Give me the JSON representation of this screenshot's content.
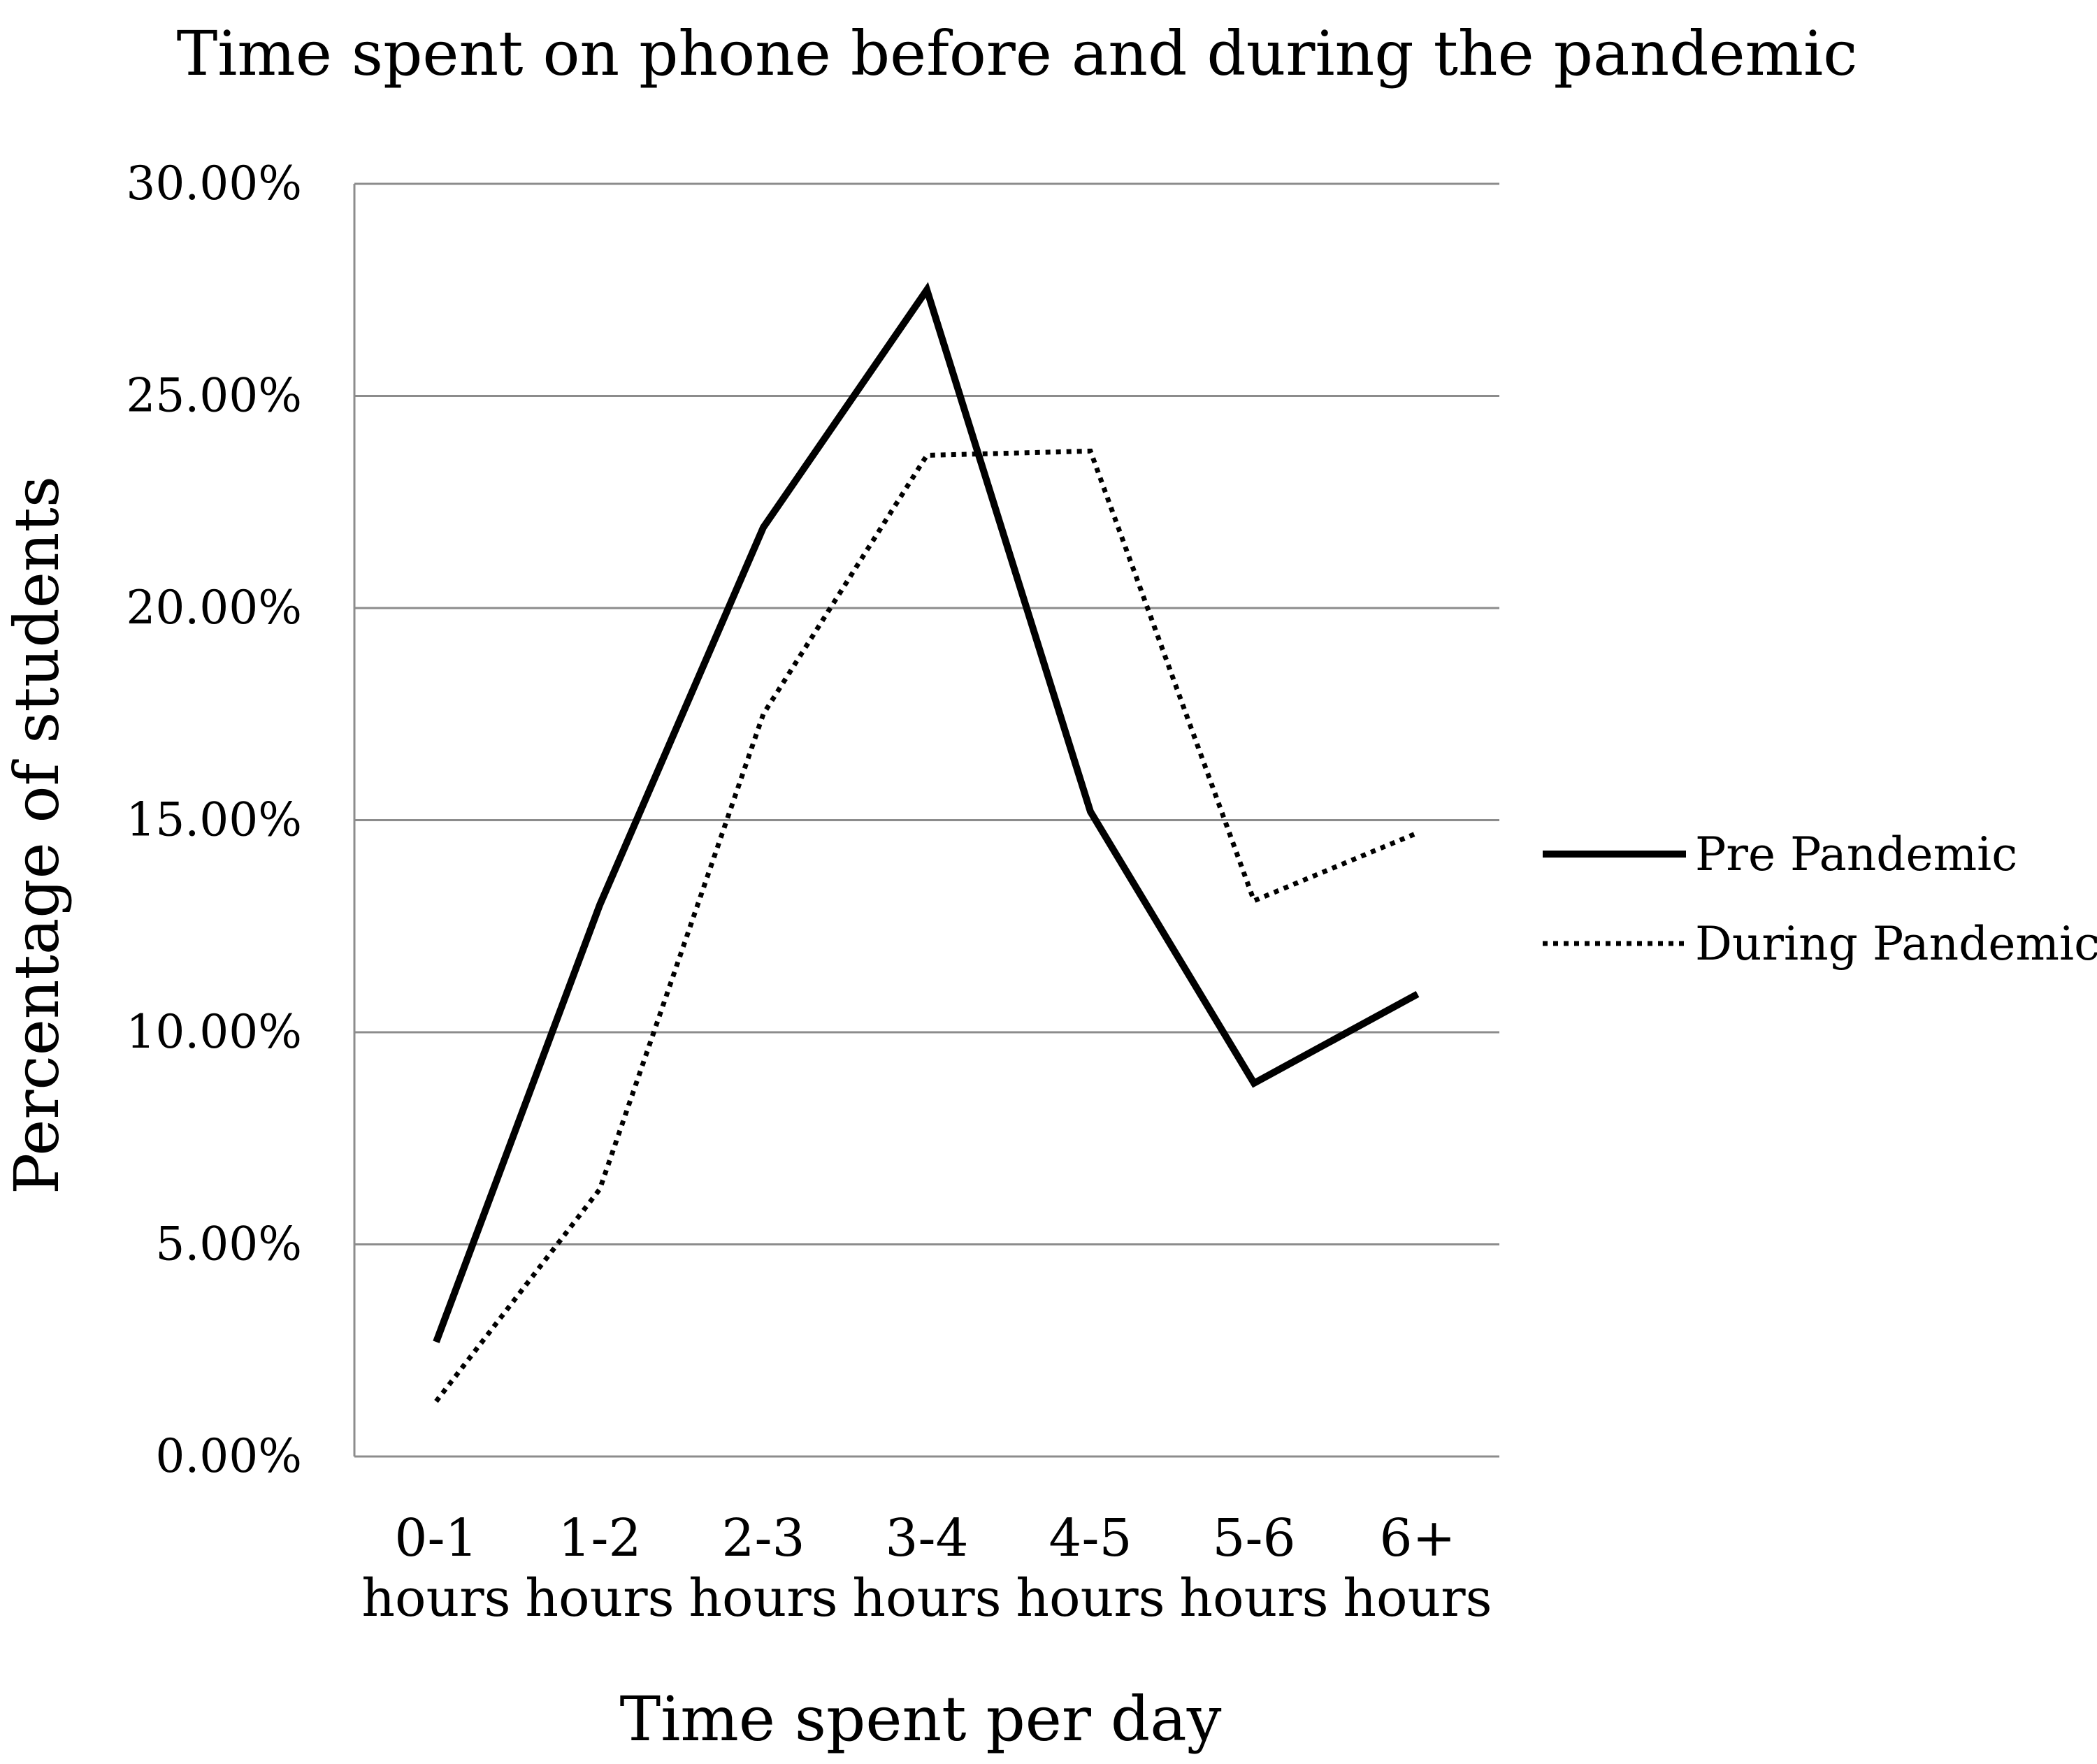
{
  "chart_data": {
    "type": "line",
    "title": "Time spent on phone before and during the pandemic",
    "xlabel": "Time spent per day",
    "ylabel": "Percentage of students",
    "categories": [
      [
        "0-1",
        "hours"
      ],
      [
        "1-2",
        "hours"
      ],
      [
        "2-3",
        "hours"
      ],
      [
        "3-4",
        "hours"
      ],
      [
        "4-5",
        "hours"
      ],
      [
        "5-6",
        "hours"
      ],
      [
        "6+",
        "hours"
      ]
    ],
    "y_ticks": [
      "0.00%",
      "5.00%",
      "10.00%",
      "15.00%",
      "20.00%",
      "25.00%",
      "30.00%"
    ],
    "ylim": [
      0,
      30
    ],
    "grid": true,
    "legend_position": "right",
    "series": [
      {
        "name": "Pre Pandemic",
        "style": "solid",
        "color": "#000000",
        "values": [
          2.7,
          13.0,
          21.9,
          27.5,
          15.2,
          8.8,
          10.9
        ]
      },
      {
        "name": "During Pandemic",
        "style": "dotted",
        "color": "#000000",
        "values": [
          1.3,
          6.3,
          17.5,
          23.6,
          23.7,
          13.1,
          14.7
        ]
      }
    ]
  }
}
